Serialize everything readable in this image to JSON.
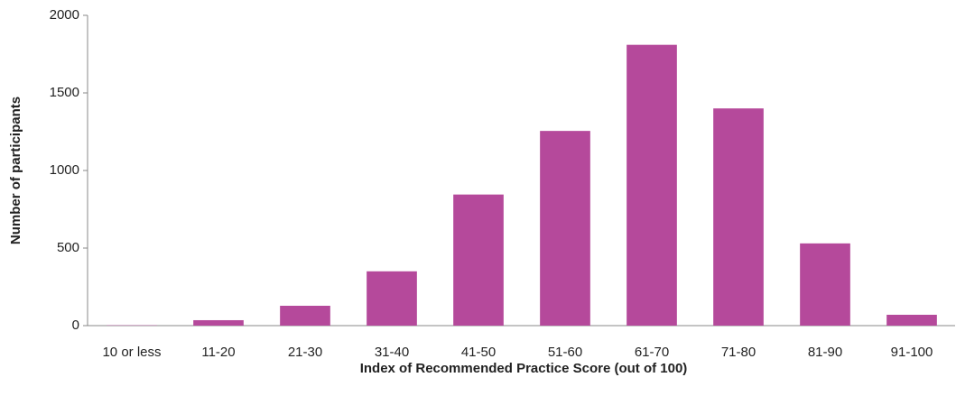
{
  "chart_data": {
    "type": "bar",
    "x_label": "Index of Recommended Practice Score (out of 100)",
    "y_label": "Number of participants",
    "categories": [
      "10 or less",
      "11-20",
      "21-30",
      "31-40",
      "41-50",
      "51-60",
      "61-70",
      "71-80",
      "81-90",
      "91-100"
    ],
    "values": [
      2,
      35,
      128,
      350,
      845,
      1255,
      1810,
      1400,
      530,
      70
    ],
    "color": "#b5499b",
    "ylim": [
      0,
      2000
    ],
    "yticks": [
      0,
      500,
      1000,
      1500,
      2000
    ],
    "grid": false
  }
}
